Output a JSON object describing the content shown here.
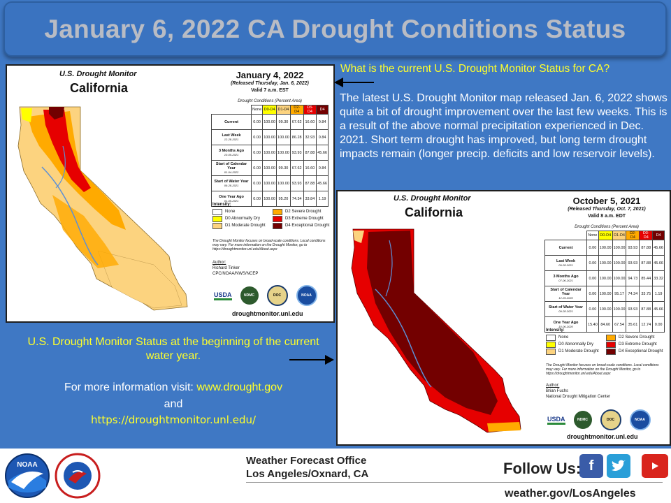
{
  "title": "January 6, 2022 CA Drought Conditions Status",
  "question": "What is the current U.S. Drought Monitor Status for CA?",
  "description": "The latest U.S. Drought Monitor map released Jan. 6, 2022 shows quite a bit of drought improvement over the last few weeks. This is a result of the above normal precipitation experienced in Dec. 2021. Short term drought has improved, but long term drought impacts remain (longer precip. deficits and low reservoir levels).",
  "water_year_caption": "U.S. Drought Monitor Status at the beginning of the current water year.",
  "more_info": {
    "prefix": "For more information visit: ",
    "link1": "www.drought.gov",
    "and": "and",
    "link2": "https://droughtmonitor.unl.edu/"
  },
  "colors": {
    "none": "#ffffff",
    "d0": "#ffff00",
    "d1": "#fcd37f",
    "d2": "#ffaa00",
    "d3": "#e60000",
    "d4": "#730000"
  },
  "map_common": {
    "udm": "U.S. Drought Monitor",
    "state": "California",
    "conditions_title": "Drought Conditions (Percent Area)",
    "col_headers": [
      "None",
      "D0-D4",
      "D1-D4",
      "D2-D4",
      "D3-D4",
      "D4"
    ],
    "intensity_title": "Intensity:",
    "legend": [
      "None",
      "D0 Abnormally Dry",
      "D1 Moderate Drought",
      "D2 Severe Drought",
      "D3 Extreme Drought",
      "D4 Exceptional Drought"
    ],
    "note": "The Drought Monitor focuses on broad-scale conditions. Local conditions may vary. For more information on the Drought Monitor, go to https://droughtmonitor.unl.edu/About.aspx",
    "author_label": "Author:",
    "logos": [
      "USDA",
      "NDMC",
      "DOC",
      "NOAA"
    ],
    "url": "droughtmonitor.unl.edu"
  },
  "map_current": {
    "date": "January 4, 2022",
    "released": "(Released Thursday, Jan. 6, 2022)",
    "valid": "Valid 7 a.m. EST",
    "rows": [
      {
        "label": "Current",
        "sub": "",
        "values": [
          "0.00",
          "100.00",
          "99.30",
          "67.62",
          "16.60",
          "0.84"
        ]
      },
      {
        "label": "Last Week",
        "sub": "12-28-2021",
        "values": [
          "0.00",
          "100.00",
          "100.00",
          "86.28",
          "32.93",
          "0.84"
        ]
      },
      {
        "label": "3 Months Ago",
        "sub": "10-05-2021",
        "values": [
          "0.00",
          "100.00",
          "100.00",
          "93.93",
          "87.88",
          "45.66"
        ]
      },
      {
        "label": "Start of Calendar Year",
        "sub": "01-04-2022",
        "values": [
          "0.00",
          "100.00",
          "99.30",
          "67.62",
          "16.60",
          "0.84"
        ]
      },
      {
        "label": "Start of Water Year",
        "sub": "09-28-2021",
        "values": [
          "0.00",
          "100.00",
          "100.00",
          "93.93",
          "87.88",
          "45.66"
        ]
      },
      {
        "label": "One Year Ago",
        "sub": "01-05-2021",
        "values": [
          "0.00",
          "100.00",
          "95.20",
          "74.34",
          "33.84",
          "1.19"
        ]
      }
    ],
    "author": [
      "Richard Tinker",
      "CPC/NOAA/NWS/NCEP"
    ]
  },
  "map_start": {
    "date": "October 5, 2021",
    "released": "(Released Thursday, Oct. 7, 2021)",
    "valid": "Valid 8 a.m. EDT",
    "rows": [
      {
        "label": "Current",
        "sub": "",
        "values": [
          "0.00",
          "100.00",
          "100.00",
          "93.93",
          "87.88",
          "45.66"
        ]
      },
      {
        "label": "Last Week",
        "sub": "09-28-2021",
        "values": [
          "0.00",
          "100.00",
          "100.00",
          "93.93",
          "87.88",
          "45.66"
        ]
      },
      {
        "label": "3 Months Ago",
        "sub": "07-06-2021",
        "values": [
          "0.00",
          "100.00",
          "100.00",
          "94.73",
          "85.44",
          "33.32"
        ]
      },
      {
        "label": "Start of Calendar Year",
        "sub": "12-29-2020",
        "values": [
          "0.00",
          "100.00",
          "95.17",
          "74.34",
          "33.75",
          "1.19"
        ]
      },
      {
        "label": "Start of Water Year",
        "sub": "09-28-2021",
        "values": [
          "0.00",
          "100.00",
          "100.00",
          "93.93",
          "87.88",
          "45.66"
        ]
      },
      {
        "label": "One Year Ago",
        "sub": "10-06-2020",
        "values": [
          "15.40",
          "84.60",
          "67.54",
          "35.61",
          "12.74",
          "0.00"
        ]
      }
    ],
    "author": [
      "Brian Fuchs",
      "National Drought Mitigation Center"
    ]
  },
  "footer": {
    "office_line1": "Weather Forecast Office",
    "office_line2": "Los Angeles/Oxnard, CA",
    "follow": "Follow Us:",
    "website": "weather.gov/LosAngeles",
    "noaa": "NOAA",
    "nws_arc": "NATIONAL WEATHER SERVICE",
    "social": [
      "facebook-icon",
      "twitter-icon",
      "youtube-icon"
    ]
  }
}
